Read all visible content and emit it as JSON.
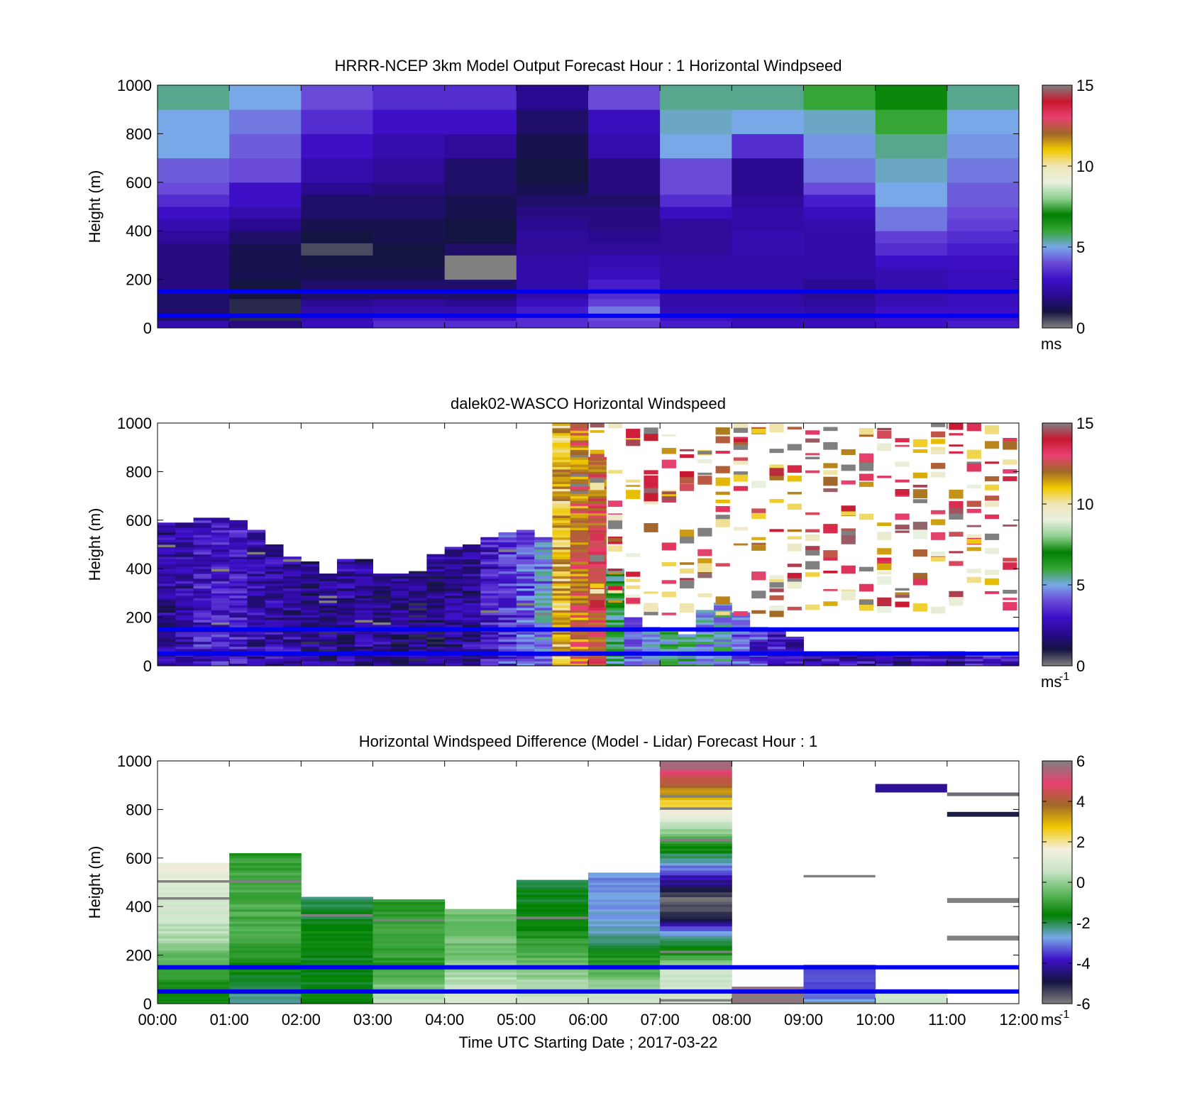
{
  "colors": {
    "windspeed_colormap": [
      "#808080",
      "#141440",
      "#2a0a90",
      "#3d10c8",
      "#6a4ad8",
      "#78a8e8",
      "#35a535",
      "#008000",
      "#8fd08f",
      "#e8f0e0",
      "#f0e6b8",
      "#f0c800",
      "#a06828",
      "#e84070",
      "#c81830",
      "#808080"
    ],
    "difference_colormap": [
      "#808080",
      "#141440",
      "#3d10c8",
      "#78a8e8",
      "#008000",
      "#60b860",
      "#c8e4c8",
      "#f5f0e0",
      "#f0c800",
      "#a06828",
      "#e84070",
      "#808080"
    ],
    "reference_lines": "#0000ee",
    "missing": "#ffffff"
  },
  "shared_axes": {
    "x_tick_labels": [
      "00:00",
      "01:00",
      "02:00",
      "03:00",
      "04:00",
      "05:00",
      "06:00",
      "07:00",
      "08:00",
      "09:00",
      "10:00",
      "11:00",
      "12:00"
    ],
    "x_label": "Time UTC  Starting Date ; 2017-03-22",
    "y_label": "Height (m)",
    "y_tick_labels": [
      "0",
      "200",
      "400",
      "600",
      "800",
      "1000"
    ]
  },
  "chart_data": [
    {
      "type": "heatmap",
      "title": "HRRR-NCEP 3km Model Output   Forecast Hour : 1 Horizontal Windpseed",
      "xlabel": "",
      "ylabel": "Height (m)",
      "xlim": [
        0,
        12
      ],
      "ylim": [
        0,
        1000
      ],
      "x_unit": "hours UTC",
      "reference_lines_y": [
        50,
        150
      ],
      "colorbar": {
        "ticks": [
          "0",
          "5",
          "10",
          "15"
        ],
        "range": [
          0,
          15
        ],
        "unit_label": "ms"
      },
      "layer_heights": [
        0,
        30,
        60,
        90,
        120,
        150,
        200,
        250,
        300,
        350,
        400,
        450,
        500,
        550,
        600,
        700,
        800,
        900,
        1000
      ],
      "values_by_hour": [
        [
          2.5,
          1.5,
          1.5,
          1.5,
          1.5,
          1.8,
          1.8,
          1.8,
          1.8,
          2.2,
          2.6,
          3.0,
          3.5,
          4.0,
          4.2,
          5.0,
          5.0,
          5.5,
          5.8
        ],
        [
          1.8,
          0.8,
          0.8,
          0.8,
          1.0,
          1.0,
          1.2,
          1.2,
          1.2,
          1.5,
          2.0,
          2.5,
          3.0,
          3.0,
          4.0,
          4.2,
          4.5,
          5.0,
          5.0
        ],
        [
          2.8,
          2.6,
          2.4,
          2.0,
          1.5,
          1.5,
          1.2,
          1.0,
          0.5,
          1.0,
          1.2,
          1.5,
          1.5,
          2.0,
          2.5,
          3.0,
          3.5,
          4.0,
          4.5
        ],
        [
          3.5,
          3.2,
          2.6,
          2.2,
          1.5,
          1.5,
          1.2,
          1.0,
          1.0,
          1.2,
          1.2,
          1.5,
          1.5,
          1.8,
          2.2,
          2.5,
          3.0,
          3.5,
          3.8
        ],
        [
          3.5,
          3.0,
          2.5,
          2.0,
          1.5,
          1.5,
          15.0,
          15.0,
          1.5,
          1.0,
          1.0,
          1.2,
          1.2,
          1.5,
          1.5,
          2.2,
          3.0,
          3.5,
          3.8
        ],
        [
          3.5,
          3.5,
          3.2,
          2.8,
          2.4,
          2.4,
          2.4,
          2.4,
          2.2,
          2.2,
          2.0,
          1.8,
          1.5,
          1.2,
          1.0,
          1.2,
          1.5,
          2.0,
          2.5
        ],
        [
          3.8,
          4.0,
          4.5,
          3.8,
          3.5,
          3.2,
          2.8,
          2.6,
          2.2,
          2.0,
          1.8,
          1.8,
          1.5,
          1.8,
          1.8,
          2.5,
          2.8,
          4.0,
          5.0
        ],
        [
          3.2,
          3.0,
          2.6,
          2.4,
          2.4,
          2.4,
          2.4,
          2.4,
          2.2,
          2.2,
          2.2,
          2.8,
          3.5,
          4.0,
          4.0,
          5.0,
          5.2,
          5.5,
          6.0
        ],
        [
          2.8,
          2.6,
          2.6,
          2.4,
          2.4,
          2.4,
          2.4,
          2.4,
          2.6,
          2.6,
          2.4,
          2.4,
          2.2,
          2.0,
          2.0,
          3.5,
          5.0,
          5.5,
          6.5
        ],
        [
          2.8,
          2.6,
          2.4,
          2.2,
          2.0,
          2.0,
          2.4,
          2.4,
          2.4,
          2.4,
          2.5,
          2.8,
          3.2,
          4.0,
          4.5,
          4.8,
          5.2,
          6.0,
          7.0
        ],
        [
          3.0,
          3.0,
          3.0,
          2.6,
          2.6,
          2.6,
          2.6,
          3.0,
          3.5,
          3.8,
          4.5,
          4.5,
          5.0,
          5.0,
          5.2,
          5.5,
          6.0,
          6.8,
          9.0
        ],
        [
          3.2,
          3.0,
          3.0,
          2.8,
          2.8,
          2.8,
          2.8,
          3.0,
          3.2,
          3.5,
          3.8,
          4.0,
          4.2,
          4.2,
          4.5,
          4.8,
          5.0,
          5.5,
          6.0
        ]
      ]
    },
    {
      "type": "heatmap",
      "title": "dalek02-WASCO  Horizontal Windspeed",
      "xlabel": "",
      "ylabel": "Height (m)",
      "xlim": [
        0,
        12
      ],
      "ylim": [
        0,
        1000
      ],
      "x_unit": "hours UTC",
      "reference_lines_y": [
        50,
        150
      ],
      "colorbar": {
        "ticks": [
          "0",
          "5",
          "10",
          "15"
        ],
        "range": [
          0,
          15
        ],
        "unit_label": "ms",
        "unit_exponent": "-1"
      },
      "observation_tops_by_quarter_hour": [
        590,
        590,
        610,
        610,
        600,
        560,
        500,
        450,
        430,
        380,
        440,
        440,
        380,
        380,
        390,
        460,
        490,
        500,
        530,
        550,
        560,
        530,
        1000,
        1000,
        860,
        400,
        200,
        160,
        140,
        130,
        230,
        260,
        220,
        160,
        150,
        120,
        60,
        60,
        60,
        60,
        60,
        60,
        60,
        60,
        60,
        40,
        40,
        40
      ],
      "typical_speed_by_quarter_hour": [
        2.2,
        2.4,
        3.0,
        3.0,
        3.0,
        2.6,
        2.4,
        2.2,
        2.0,
        2.0,
        2.2,
        2.0,
        2.0,
        2.0,
        1.8,
        2.0,
        2.2,
        2.2,
        3.0,
        3.5,
        4.0,
        4.5,
        11.0,
        12.0,
        12.5,
        6.0,
        4.5,
        5.0,
        5.5,
        5.5,
        5.0,
        5.0,
        4.0,
        3.5,
        3.0,
        2.5,
        2.5,
        2.5,
        2.5,
        2.5,
        2.5,
        2.5,
        2.5,
        2.5,
        2.5,
        3.0,
        3.0,
        3.0
      ],
      "upper_returns_range": [
        200,
        1000
      ],
      "upper_returns_speed_range": [
        9,
        15
      ]
    },
    {
      "type": "heatmap",
      "title": "Horizontal Windspeed Difference (Model - Lidar) Forecast Hour : 1",
      "xlabel": "Time UTC  Starting Date ; 2017-03-22",
      "ylabel": "Height (m)",
      "xlim": [
        0,
        12
      ],
      "ylim": [
        0,
        1000
      ],
      "x_unit": "hours UTC",
      "reference_lines_y": [
        50,
        150
      ],
      "colorbar": {
        "ticks": [
          "-6",
          "-4",
          "-2",
          "0",
          "2",
          "4",
          "6"
        ],
        "range": [
          -6,
          6
        ],
        "unit_label": "ms",
        "unit_exponent": "-1"
      },
      "column_tops_by_hour": [
        580,
        620,
        440,
        430,
        390,
        510,
        540,
        1000,
        70,
        160,
        60,
        0
      ],
      "profile_by_hour": [
        [
          [
            0,
            -1.5
          ],
          [
            150,
            -1.0
          ],
          [
            250,
            0.2
          ],
          [
            400,
            0.8
          ],
          [
            580,
            1.5
          ]
        ],
        [
          [
            0,
            -2.5
          ],
          [
            150,
            -1.5
          ],
          [
            300,
            -0.8
          ],
          [
            500,
            -0.8
          ],
          [
            620,
            -1.2
          ]
        ],
        [
          [
            0,
            -1.5
          ],
          [
            150,
            -1.8
          ],
          [
            300,
            -1.6
          ],
          [
            440,
            -2.2
          ]
        ],
        [
          [
            0,
            0.8
          ],
          [
            60,
            -0.1
          ],
          [
            150,
            -1.2
          ],
          [
            300,
            -0.8
          ],
          [
            430,
            -1.2
          ]
        ],
        [
          [
            0,
            1.2
          ],
          [
            100,
            0.4
          ],
          [
            200,
            -0.3
          ],
          [
            390,
            -0.4
          ]
        ],
        [
          [
            0,
            1.0
          ],
          [
            200,
            -0.8
          ],
          [
            350,
            -1.6
          ],
          [
            510,
            -1.8
          ]
        ],
        [
          [
            0,
            1.0
          ],
          [
            160,
            -1.0
          ],
          [
            300,
            -2.6
          ],
          [
            540,
            -3.0
          ]
        ],
        [
          [
            0,
            1.0
          ],
          [
            150,
            0.5
          ],
          [
            200,
            -1.2
          ],
          [
            300,
            -3.0
          ],
          [
            350,
            -5.0
          ],
          [
            430,
            -5.8
          ],
          [
            1000,
            6.0
          ]
        ],
        [
          [
            0,
            6.0
          ],
          [
            70,
            6.0
          ]
        ],
        [
          [
            0,
            -2.8
          ],
          [
            160,
            -3.8
          ]
        ],
        [
          [
            0,
            0.6
          ],
          [
            60,
            0.6
          ]
        ],
        [
          [
            0,
            0.0
          ]
        ]
      ],
      "isolated_segments": [
        {
          "x0": 10.0,
          "x1": 11.0,
          "y0": 870,
          "y1": 905,
          "value": -4.2
        },
        {
          "x0": 11.0,
          "x1": 12.0,
          "y0": 855,
          "y1": 870,
          "value": -5.8
        },
        {
          "x0": 11.0,
          "x1": 12.0,
          "y0": 770,
          "y1": 790,
          "value": -5.0
        },
        {
          "x0": 9.0,
          "x1": 10.0,
          "y0": 520,
          "y1": 530,
          "value": 6.0
        },
        {
          "x0": 11.0,
          "x1": 12.0,
          "y0": 415,
          "y1": 435,
          "value": 6.0
        },
        {
          "x0": 11.0,
          "x1": 12.0,
          "y0": 260,
          "y1": 280,
          "value": 6.0
        }
      ]
    }
  ]
}
